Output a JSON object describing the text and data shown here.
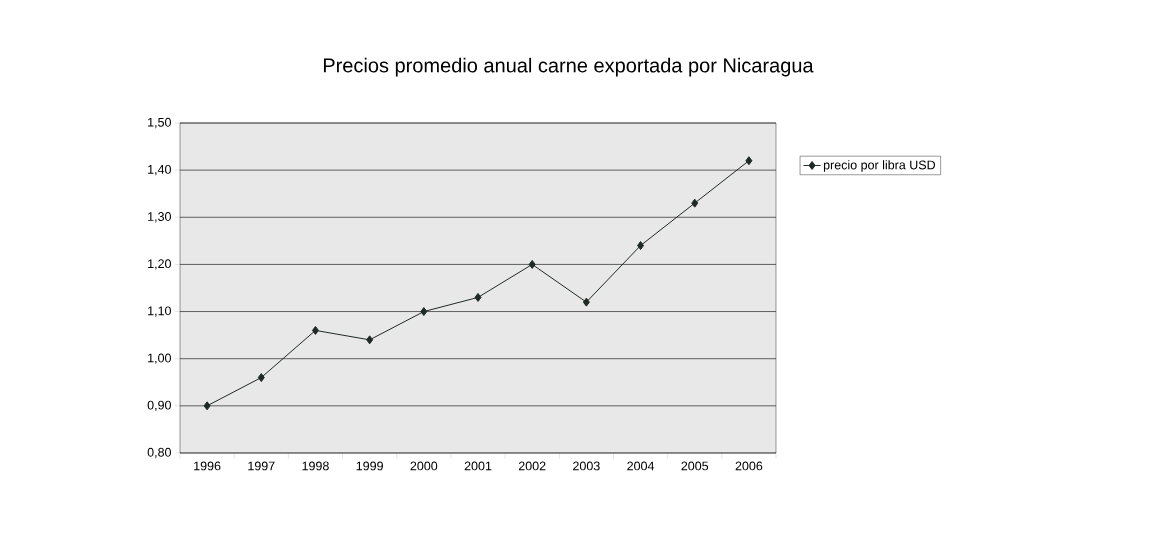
{
  "chart_data": {
    "type": "line",
    "title": "Precios promedio anual carne exportada por Nicaragua",
    "categories": [
      "1996",
      "1997",
      "1998",
      "1999",
      "2000",
      "2001",
      "2002",
      "2003",
      "2004",
      "2005",
      "2006"
    ],
    "series": [
      {
        "name": "precio por libra USD",
        "color": "#1f2a24",
        "values": [
          0.9,
          0.96,
          1.06,
          1.04,
          1.1,
          1.13,
          1.2,
          1.12,
          1.24,
          1.33,
          1.42
        ]
      }
    ],
    "ylim": [
      0.8,
      1.5
    ],
    "yticks": [
      {
        "value": 0.8,
        "label": "0,80"
      },
      {
        "value": 0.9,
        "label": "0,90"
      },
      {
        "value": 1.0,
        "label": "1,00"
      },
      {
        "value": 1.1,
        "label": "1,10"
      },
      {
        "value": 1.2,
        "label": "1,20"
      },
      {
        "value": 1.3,
        "label": "1,30"
      },
      {
        "value": 1.4,
        "label": "1,40"
      },
      {
        "value": 1.5,
        "label": "1,50"
      }
    ],
    "grid": "y",
    "legend": "right",
    "marker": "diamond",
    "line_style": "solid"
  }
}
